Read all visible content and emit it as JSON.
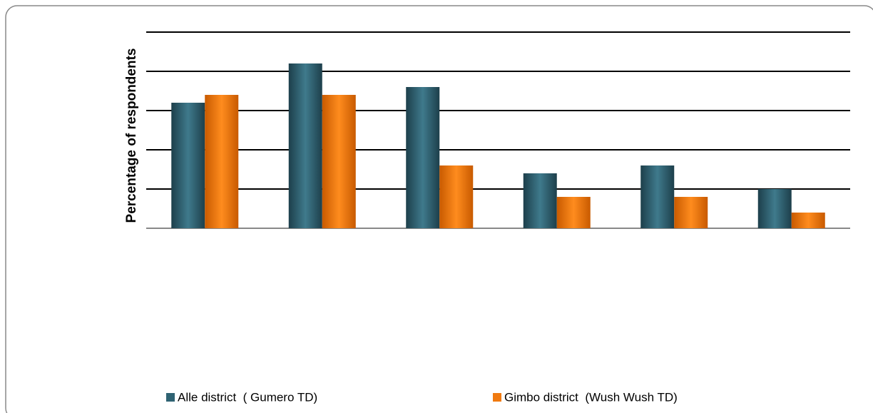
{
  "chart_data": {
    "type": "bar",
    "y_label": "Percentage of  respondents",
    "categories": [
      null,
      null,
      null,
      null,
      null,
      null
    ],
    "series": [
      {
        "name": "Alle district  ( Gumero TD)",
        "color": "#2f6373",
        "values": [
          3.2,
          4.2,
          3.6,
          1.4,
          1.6,
          1.0
        ]
      },
      {
        "name": "Gimbo district  (Wush Wush TD)",
        "color": "#f07a10",
        "values": [
          3.4,
          3.4,
          1.6,
          0.8,
          0.8,
          0.4
        ]
      }
    ],
    "ylim": [
      0,
      5
    ],
    "yticks": [
      0,
      1,
      2,
      3,
      4,
      5
    ],
    "grid": true,
    "legend": "bottom"
  }
}
